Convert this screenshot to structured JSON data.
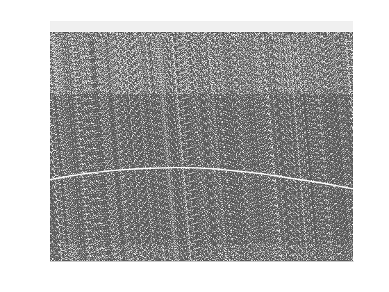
{
  "chart_data": {
    "type": "line",
    "x": [
      0,
      0.1,
      0.2,
      0.3,
      0.4,
      0.5,
      0.6,
      0.7,
      0.8,
      0.9,
      1.0
    ],
    "values": [
      0.338,
      0.36,
      0.375,
      0.384,
      0.388,
      0.386,
      0.376,
      0.362,
      0.343,
      0.323,
      0.3
    ],
    "color": "#ffffff",
    "marker": "none",
    "line_style": "solid",
    "xlim": [
      0,
      1
    ],
    "ylim": [
      0,
      1
    ],
    "grid": false,
    "tick_labels": false
  }
}
